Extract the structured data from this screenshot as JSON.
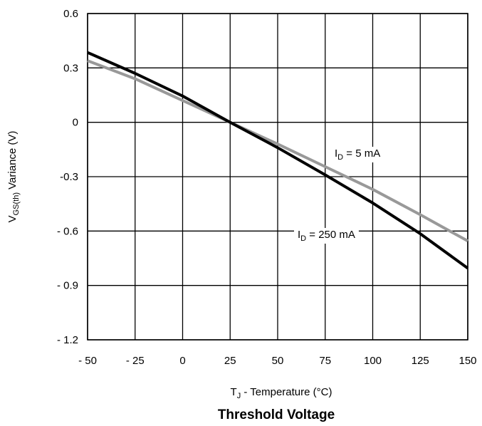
{
  "chart_data": {
    "type": "line",
    "title": "Threshold Voltage",
    "xlabel": {
      "main": "T",
      "sub": "J",
      "rest": " - Temperature (°C)"
    },
    "ylabel": {
      "main": "V",
      "sub": "GS(th)",
      "rest": " Variance (V)"
    },
    "xlim": [
      -50,
      150
    ],
    "ylim": [
      -1.2,
      0.6
    ],
    "grid": true,
    "x_ticks": [
      -50,
      -25,
      0,
      25,
      50,
      75,
      100,
      125,
      150
    ],
    "x_tick_labels": [
      "- 50",
      "- 25",
      "0",
      "25",
      "50",
      "75",
      "100",
      "125",
      "150"
    ],
    "y_ticks": [
      0.6,
      0.3,
      0,
      -0.3,
      -0.6,
      -0.9,
      -1.2
    ],
    "y_tick_labels": [
      "0.6",
      "0.3",
      "0",
      "-0.3",
      "- 0.6",
      "- 0.9",
      "- 1.2"
    ],
    "series": [
      {
        "name": "I_D = 5 mA",
        "label": {
          "main": "I",
          "sub": "D",
          "rest": " = 5 mA"
        },
        "color": "#999999",
        "x": [
          -50,
          -25,
          0,
          25,
          50,
          75,
          100,
          125,
          150
        ],
        "y": [
          0.34,
          0.24,
          0.12,
          0.0,
          -0.12,
          -0.245,
          -0.37,
          -0.51,
          -0.655
        ]
      },
      {
        "name": "I_D = 250 mA",
        "label": {
          "main": "I",
          "sub": "D",
          "rest": " = 250 mA"
        },
        "color": "#000000",
        "x": [
          -50,
          -25,
          0,
          25,
          50,
          75,
          100,
          125,
          150
        ],
        "y": [
          0.385,
          0.27,
          0.145,
          0.0,
          -0.14,
          -0.29,
          -0.445,
          -0.615,
          -0.805
        ]
      }
    ]
  },
  "colors": {
    "grid": "#000000",
    "background": "#ffffff"
  }
}
